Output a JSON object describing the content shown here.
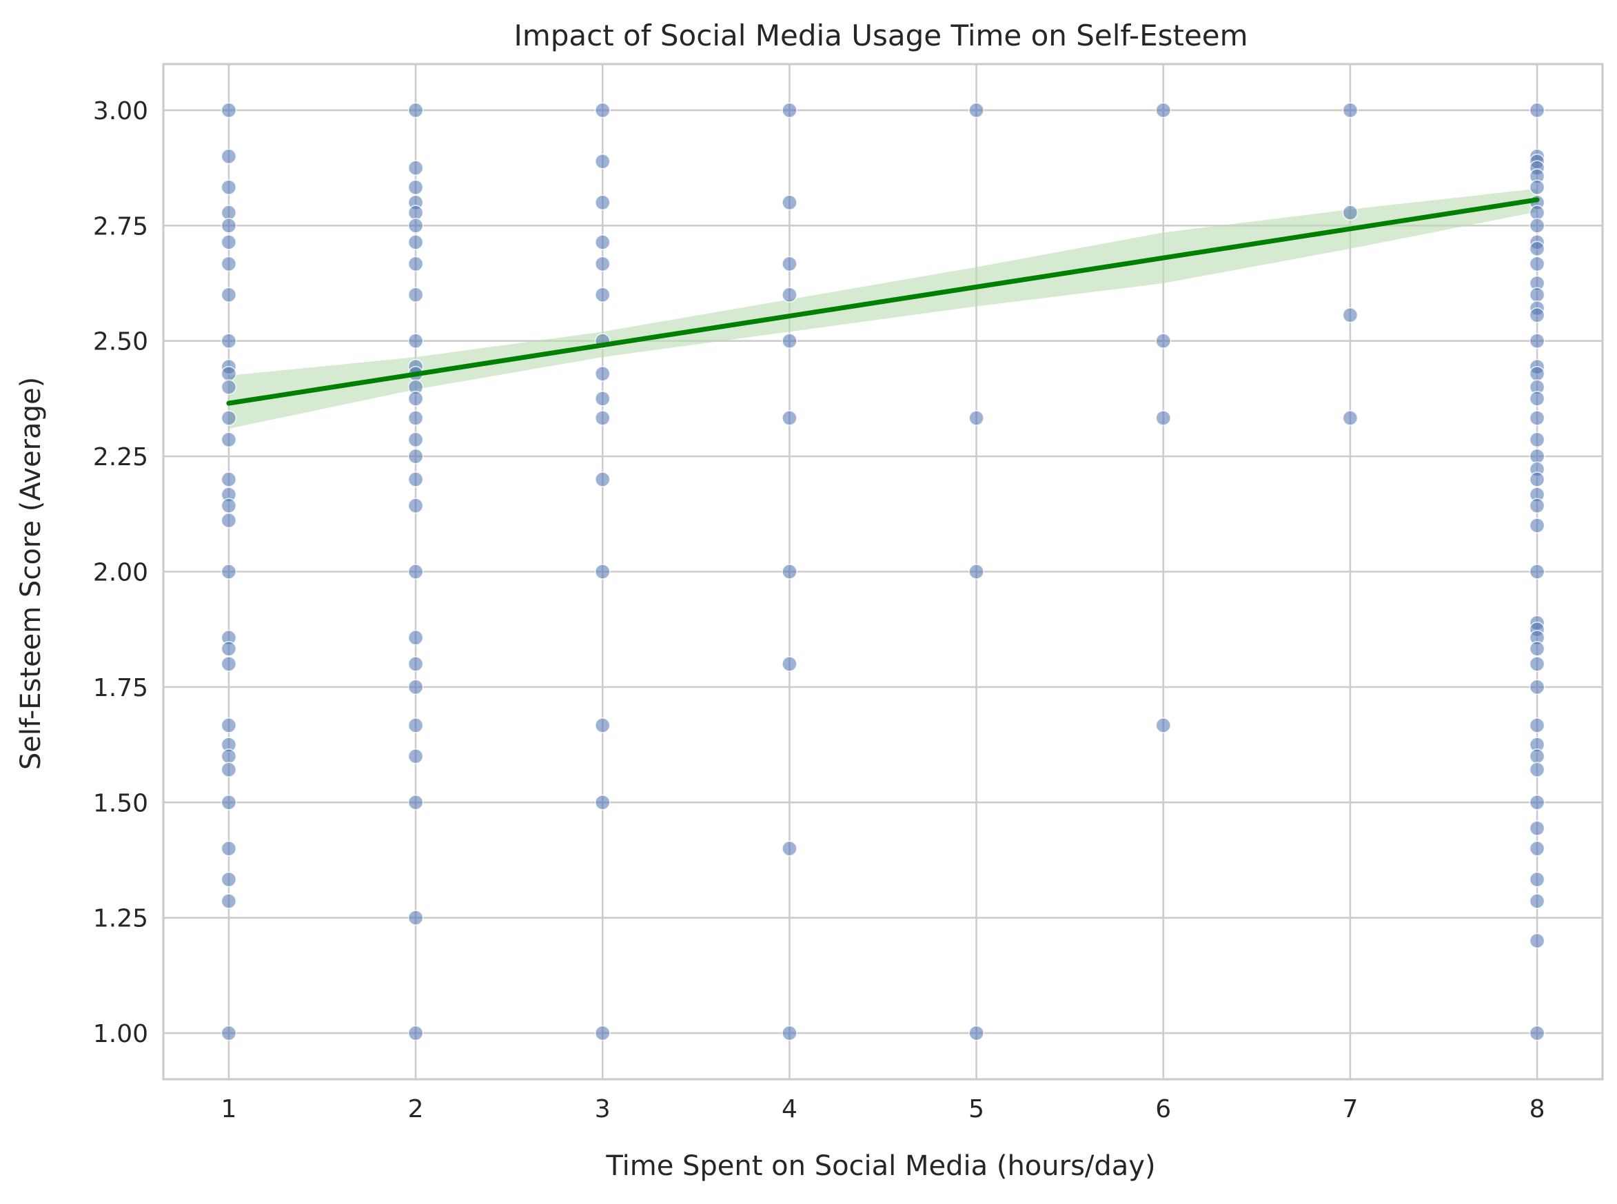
{
  "chart_data": {
    "type": "scatter",
    "title": "Impact of Social Media Usage Time on Self-Esteem",
    "xlabel": "Time Spent on Social Media (hours/day)",
    "ylabel": "Self-Esteem Score (Average)",
    "xlim": [
      0.65,
      8.35
    ],
    "ylim": [
      0.9,
      3.1
    ],
    "xticks": [
      1,
      2,
      3,
      4,
      5,
      6,
      7,
      8
    ],
    "yticks": [
      1.0,
      1.25,
      1.5,
      1.75,
      2.0,
      2.25,
      2.5,
      2.75,
      3.0
    ],
    "xtick_labels": [
      "1",
      "2",
      "3",
      "4",
      "5",
      "6",
      "7",
      "8"
    ],
    "ytick_labels": [
      "1.00",
      "1.25",
      "1.50",
      "1.75",
      "2.00",
      "2.25",
      "2.50",
      "2.75",
      "3.00"
    ],
    "grid": true,
    "colors": {
      "points": "#4c72b0",
      "regression_line": "#008000",
      "confidence_band": "#b9dcb0",
      "grid": "#cccccc",
      "spine": "#cccccc"
    },
    "series": [
      {
        "points": [
          [
            1,
            3.0
          ],
          [
            1,
            2.9
          ],
          [
            1,
            2.833
          ],
          [
            1,
            2.778
          ],
          [
            1,
            2.75
          ],
          [
            1,
            2.714
          ],
          [
            1,
            2.667
          ],
          [
            1,
            2.6
          ],
          [
            1,
            2.5
          ],
          [
            1,
            2.444
          ],
          [
            1,
            2.429
          ],
          [
            1,
            2.4
          ],
          [
            1,
            2.333
          ],
          [
            1,
            2.286
          ],
          [
            1,
            2.2
          ],
          [
            1,
            2.167
          ],
          [
            1,
            2.143
          ],
          [
            1,
            2.111
          ],
          [
            1,
            2.0
          ],
          [
            1,
            1.857
          ],
          [
            1,
            1.833
          ],
          [
            1,
            1.8
          ],
          [
            1,
            1.667
          ],
          [
            1,
            1.625
          ],
          [
            1,
            1.6
          ],
          [
            1,
            1.571
          ],
          [
            1,
            1.5
          ],
          [
            1,
            1.4
          ],
          [
            1,
            1.333
          ],
          [
            1,
            1.286
          ],
          [
            1,
            1.0
          ],
          [
            2,
            3.0
          ],
          [
            2,
            2.875
          ],
          [
            2,
            2.833
          ],
          [
            2,
            2.8
          ],
          [
            2,
            2.778
          ],
          [
            2,
            2.75
          ],
          [
            2,
            2.714
          ],
          [
            2,
            2.667
          ],
          [
            2,
            2.6
          ],
          [
            2,
            2.5
          ],
          [
            2,
            2.444
          ],
          [
            2,
            2.429
          ],
          [
            2,
            2.4
          ],
          [
            2,
            2.375
          ],
          [
            2,
            2.333
          ],
          [
            2,
            2.286
          ],
          [
            2,
            2.25
          ],
          [
            2,
            2.2
          ],
          [
            2,
            2.143
          ],
          [
            2,
            2.0
          ],
          [
            2,
            1.857
          ],
          [
            2,
            1.8
          ],
          [
            2,
            1.75
          ],
          [
            2,
            1.667
          ],
          [
            2,
            1.6
          ],
          [
            2,
            1.5
          ],
          [
            2,
            1.25
          ],
          [
            2,
            1.0
          ],
          [
            3,
            3.0
          ],
          [
            3,
            2.889
          ],
          [
            3,
            2.8
          ],
          [
            3,
            2.714
          ],
          [
            3,
            2.667
          ],
          [
            3,
            2.6
          ],
          [
            3,
            2.5
          ],
          [
            3,
            2.429
          ],
          [
            3,
            2.375
          ],
          [
            3,
            2.333
          ],
          [
            3,
            2.2
          ],
          [
            3,
            2.0
          ],
          [
            3,
            1.667
          ],
          [
            3,
            1.5
          ],
          [
            3,
            1.0
          ],
          [
            4,
            3.0
          ],
          [
            4,
            2.8
          ],
          [
            4,
            2.667
          ],
          [
            4,
            2.6
          ],
          [
            4,
            2.5
          ],
          [
            4,
            2.333
          ],
          [
            4,
            2.0
          ],
          [
            4,
            1.8
          ],
          [
            4,
            1.4
          ],
          [
            4,
            1.0
          ],
          [
            5,
            3.0
          ],
          [
            5,
            2.333
          ],
          [
            5,
            2.0
          ],
          [
            5,
            1.0
          ],
          [
            6,
            3.0
          ],
          [
            6,
            2.5
          ],
          [
            6,
            2.333
          ],
          [
            6,
            1.667
          ],
          [
            7,
            3.0
          ],
          [
            7,
            2.778
          ],
          [
            7,
            2.556
          ],
          [
            7,
            2.333
          ],
          [
            8,
            3.0
          ],
          [
            8,
            2.9
          ],
          [
            8,
            2.889
          ],
          [
            8,
            2.875
          ],
          [
            8,
            2.857
          ],
          [
            8,
            2.833
          ],
          [
            8,
            2.8
          ],
          [
            8,
            2.778
          ],
          [
            8,
            2.75
          ],
          [
            8,
            2.714
          ],
          [
            8,
            2.7
          ],
          [
            8,
            2.667
          ],
          [
            8,
            2.625
          ],
          [
            8,
            2.6
          ],
          [
            8,
            2.571
          ],
          [
            8,
            2.556
          ],
          [
            8,
            2.5
          ],
          [
            8,
            2.444
          ],
          [
            8,
            2.429
          ],
          [
            8,
            2.4
          ],
          [
            8,
            2.375
          ],
          [
            8,
            2.333
          ],
          [
            8,
            2.286
          ],
          [
            8,
            2.25
          ],
          [
            8,
            2.222
          ],
          [
            8,
            2.2
          ],
          [
            8,
            2.167
          ],
          [
            8,
            2.143
          ],
          [
            8,
            2.1
          ],
          [
            8,
            2.0
          ],
          [
            8,
            1.889
          ],
          [
            8,
            1.875
          ],
          [
            8,
            1.857
          ],
          [
            8,
            1.833
          ],
          [
            8,
            1.8
          ],
          [
            8,
            1.75
          ],
          [
            8,
            1.667
          ],
          [
            8,
            1.625
          ],
          [
            8,
            1.6
          ],
          [
            8,
            1.571
          ],
          [
            8,
            1.5
          ],
          [
            8,
            1.444
          ],
          [
            8,
            1.4
          ],
          [
            8,
            1.333
          ],
          [
            8,
            1.286
          ],
          [
            8,
            1.2
          ],
          [
            8,
            1.0
          ]
        ]
      }
    ],
    "regression": {
      "x": [
        1,
        2,
        3,
        4,
        5,
        6,
        7,
        8
      ],
      "y": [
        2.365,
        2.428,
        2.491,
        2.554,
        2.617,
        2.68,
        2.743,
        2.806
      ],
      "ci_lower": [
        2.31,
        2.395,
        2.465,
        2.52,
        2.575,
        2.625,
        2.7,
        2.78
      ],
      "ci_upper": [
        2.425,
        2.465,
        2.52,
        2.59,
        2.66,
        2.735,
        2.785,
        2.83
      ]
    }
  }
}
